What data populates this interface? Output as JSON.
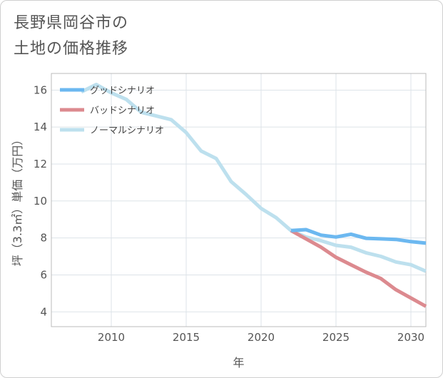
{
  "title_lines": [
    "長野県岡谷市の",
    "土地の価格推移"
  ],
  "chart_data": {
    "type": "line",
    "xlabel": "年",
    "ylabel": "坪（3.3㎡）単価（万円）",
    "xlim": [
      2006,
      2031
    ],
    "ylim": [
      3.2,
      16.9
    ],
    "x_ticks": [
      2010,
      2015,
      2020,
      2025,
      2030
    ],
    "y_ticks": [
      4,
      6,
      8,
      10,
      12,
      14,
      16
    ],
    "grid": true,
    "legend_position": "top-left",
    "series": [
      {
        "name": "グッドシナリオ",
        "color": "#6cb8f0",
        "x": [
          2022,
          2023,
          2024,
          2025,
          2026,
          2027,
          2028,
          2029,
          2030,
          2031
        ],
        "y": [
          8.4,
          8.45,
          8.15,
          8.05,
          8.2,
          7.98,
          7.95,
          7.92,
          7.8,
          7.72
        ]
      },
      {
        "name": "バッドシナリオ",
        "color": "#dc8a8f",
        "x": [
          2022,
          2023,
          2024,
          2025,
          2026,
          2027,
          2028,
          2029,
          2030,
          2031
        ],
        "y": [
          8.4,
          7.95,
          7.5,
          6.95,
          6.55,
          6.15,
          5.8,
          5.2,
          4.75,
          4.3
        ]
      },
      {
        "name": "ノーマルシナリオ",
        "color": "#bde0ee",
        "x": [
          2008,
          2009,
          2010,
          2011,
          2012,
          2013,
          2014,
          2015,
          2016,
          2017,
          2018,
          2019,
          2020,
          2021,
          2022,
          2023,
          2024,
          2025,
          2026,
          2027,
          2028,
          2029,
          2030,
          2031
        ],
        "y": [
          15.9,
          16.3,
          15.85,
          15.5,
          14.8,
          14.6,
          14.4,
          13.7,
          12.7,
          12.3,
          11.05,
          10.35,
          9.6,
          9.1,
          8.4,
          8.05,
          7.85,
          7.6,
          7.5,
          7.2,
          7.0,
          6.7,
          6.55,
          6.2
        ]
      }
    ]
  }
}
